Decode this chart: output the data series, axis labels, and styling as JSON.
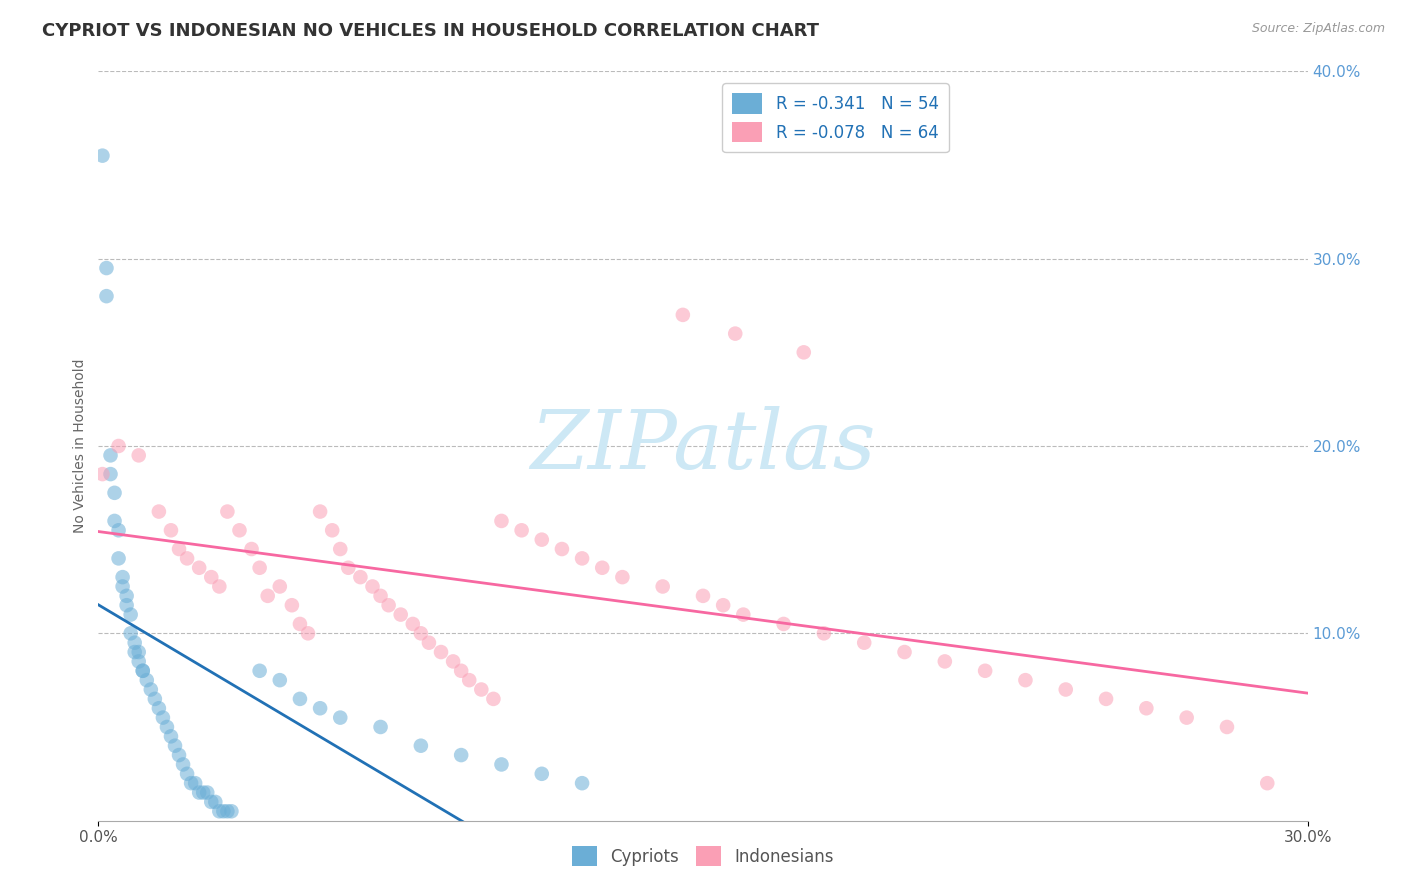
{
  "title": "CYPRIOT VS INDONESIAN NO VEHICLES IN HOUSEHOLD CORRELATION CHART",
  "source": "Source: ZipAtlas.com",
  "ylabel": "No Vehicles in Household",
  "xlim": [
    0.0,
    30.0
  ],
  "ylim": [
    0.0,
    40.0
  ],
  "xticks": [
    0.0,
    30.0
  ],
  "xticklabels": [
    "0.0%",
    "30.0%"
  ],
  "yticks_right": [
    10.0,
    20.0,
    30.0,
    40.0
  ],
  "yticklabels_right": [
    "10.0%",
    "20.0%",
    "30.0%",
    "40.0%"
  ],
  "grid_yticks": [
    10.0,
    20.0,
    30.0,
    40.0
  ],
  "legend_cypriot": "R = -0.341   N = 54",
  "legend_indonesian": "R = -0.078   N = 64",
  "color_cypriot": "#6baed6",
  "color_indonesian": "#fa9fb5",
  "color_line_cypriot": "#2171b5",
  "color_line_indonesian": "#f768a1",
  "watermark": "ZIPatlas",
  "watermark_color": "#cde8f5",
  "title_fontsize": 13,
  "axis_label_fontsize": 10,
  "tick_fontsize": 11,
  "legend_label_cypriot": "Cypriots",
  "legend_label_indonesian": "Indonesians",
  "cypriot_x": [
    0.1,
    0.2,
    0.2,
    0.3,
    0.3,
    0.4,
    0.4,
    0.5,
    0.5,
    0.6,
    0.6,
    0.7,
    0.7,
    0.8,
    0.8,
    0.9,
    0.9,
    1.0,
    1.0,
    1.1,
    1.1,
    1.2,
    1.3,
    1.4,
    1.5,
    1.6,
    1.7,
    1.8,
    1.9,
    2.0,
    2.1,
    2.2,
    2.3,
    2.4,
    2.5,
    2.6,
    2.7,
    2.8,
    2.9,
    3.0,
    3.1,
    3.2,
    3.3,
    4.0,
    4.5,
    5.0,
    5.5,
    6.0,
    7.0,
    8.0,
    9.0,
    10.0,
    11.0,
    12.0
  ],
  "cypriot_y": [
    35.5,
    29.5,
    28.0,
    19.5,
    18.5,
    17.5,
    16.0,
    15.5,
    14.0,
    13.0,
    12.5,
    12.0,
    11.5,
    11.0,
    10.0,
    9.5,
    9.0,
    9.0,
    8.5,
    8.0,
    8.0,
    7.5,
    7.0,
    6.5,
    6.0,
    5.5,
    5.0,
    4.5,
    4.0,
    3.5,
    3.0,
    2.5,
    2.0,
    2.0,
    1.5,
    1.5,
    1.5,
    1.0,
    1.0,
    0.5,
    0.5,
    0.5,
    0.5,
    8.0,
    7.5,
    6.5,
    6.0,
    5.5,
    5.0,
    4.0,
    3.5,
    3.0,
    2.5,
    2.0
  ],
  "indonesian_x": [
    0.1,
    0.5,
    1.0,
    1.5,
    1.8,
    2.0,
    2.2,
    2.5,
    2.8,
    3.0,
    3.2,
    3.5,
    3.8,
    4.0,
    4.2,
    4.5,
    4.8,
    5.0,
    5.2,
    5.5,
    5.8,
    6.0,
    6.2,
    6.5,
    6.8,
    7.0,
    7.2,
    7.5,
    7.8,
    8.0,
    8.2,
    8.5,
    8.8,
    9.0,
    9.2,
    9.5,
    9.8,
    10.0,
    10.5,
    11.0,
    11.5,
    12.0,
    12.5,
    13.0,
    14.0,
    15.0,
    15.5,
    16.0,
    17.0,
    18.0,
    19.0,
    20.0,
    21.0,
    22.0,
    23.0,
    24.0,
    25.0,
    26.0,
    27.0,
    28.0,
    14.5,
    15.8,
    17.5,
    29.0
  ],
  "indonesian_y": [
    18.5,
    20.0,
    19.5,
    16.5,
    15.5,
    14.5,
    14.0,
    13.5,
    13.0,
    12.5,
    16.5,
    15.5,
    14.5,
    13.5,
    12.0,
    12.5,
    11.5,
    10.5,
    10.0,
    16.5,
    15.5,
    14.5,
    13.5,
    13.0,
    12.5,
    12.0,
    11.5,
    11.0,
    10.5,
    10.0,
    9.5,
    9.0,
    8.5,
    8.0,
    7.5,
    7.0,
    6.5,
    16.0,
    15.5,
    15.0,
    14.5,
    14.0,
    13.5,
    13.0,
    12.5,
    12.0,
    11.5,
    11.0,
    10.5,
    10.0,
    9.5,
    9.0,
    8.5,
    8.0,
    7.5,
    7.0,
    6.5,
    6.0,
    5.5,
    5.0,
    27.0,
    26.0,
    25.0,
    2.0
  ]
}
